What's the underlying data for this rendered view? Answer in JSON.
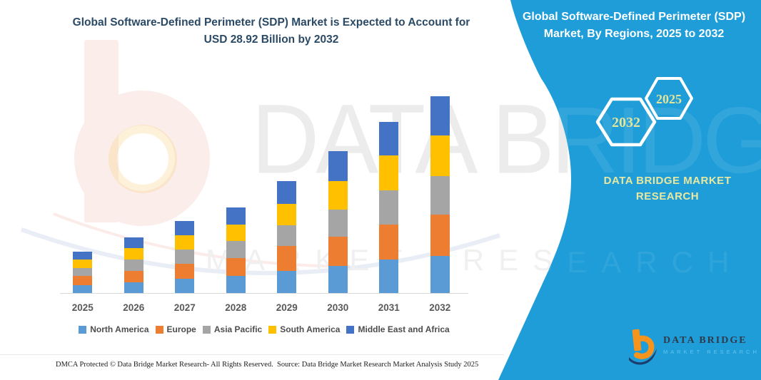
{
  "left_header": {
    "lines": [
      "Global Software-Defined Perimeter (SDP) Market is Expected to Account for",
      "USD 28.92 Billion by 2032"
    ]
  },
  "right_panel": {
    "bg": "#1e9dd8",
    "title_lines": [
      "Global Software-Defined Perimeter (SDP)",
      "Market, By Regions, 2025 to 2032"
    ],
    "hexagons": [
      {
        "label": "2032"
      },
      {
        "label": "2025"
      }
    ],
    "brand_lines": [
      "DATA BRIDGE MARKET",
      "RESEARCH"
    ]
  },
  "watermark": {
    "big_text": "DATA BRIDGE",
    "sub_text": "MARKET RESEARCH"
  },
  "chart_data": {
    "type": "bar",
    "stacked": true,
    "title": "Global Software-Defined Perimeter (SDP) Market is Expected to Account for USD 28.92 Billion by 2032",
    "unit": "USD Billion",
    "categories": [
      "2025",
      "2026",
      "2027",
      "2028",
      "2029",
      "2030",
      "2031",
      "2032"
    ],
    "series": [
      {
        "name": "North America",
        "color": "#5B9BD5",
        "values": [
          1.2,
          1.6,
          2.1,
          2.5,
          3.3,
          4.0,
          4.9,
          5.5
        ]
      },
      {
        "name": "Europe",
        "color": "#ED7D31",
        "values": [
          1.3,
          1.7,
          2.2,
          2.6,
          3.6,
          4.3,
          5.2,
          6.0
        ]
      },
      {
        "name": "Asia Pacific",
        "color": "#A5A5A5",
        "values": [
          1.2,
          1.6,
          2.1,
          2.5,
          3.0,
          4.0,
          5.0,
          5.7
        ]
      },
      {
        "name": "South America",
        "color": "#FFC000",
        "values": [
          1.2,
          1.7,
          2.1,
          2.5,
          3.2,
          4.1,
          5.1,
          6.0
        ]
      },
      {
        "name": "Middle East and Africa",
        "color": "#4472C4",
        "values": [
          1.2,
          1.6,
          2.1,
          2.5,
          3.3,
          4.4,
          4.9,
          5.7
        ]
      }
    ],
    "totals": [
      6.1,
      8.2,
      10.6,
      12.6,
      16.4,
      20.8,
      25.1,
      28.9
    ],
    "ylim": [
      0,
      30
    ],
    "grid": false,
    "legend_position": "bottom"
  },
  "footer": {
    "left": "DMCA Protected © Data Bridge Market Research- All Rights Reserved.",
    "right": "Source: Data Bridge Market Research Market Analysis Study 2025"
  },
  "logo": {
    "name": "DATA BRIDGE",
    "sub": "MARKET RESEARCH"
  },
  "colors": {
    "panel_blue": "#1e9dd8",
    "left_title": "#2b4a66",
    "brand_gold": "#e9e8a0",
    "hex_year_text": "#e3e59b",
    "axis_label": "#595959",
    "baseline": "#d9d9d9",
    "watermark_gray": "#ececec",
    "logo_orange": "#f7941d",
    "logo_navy": "#1c3e6e",
    "logo_sub_blue": "#66c4ec"
  }
}
